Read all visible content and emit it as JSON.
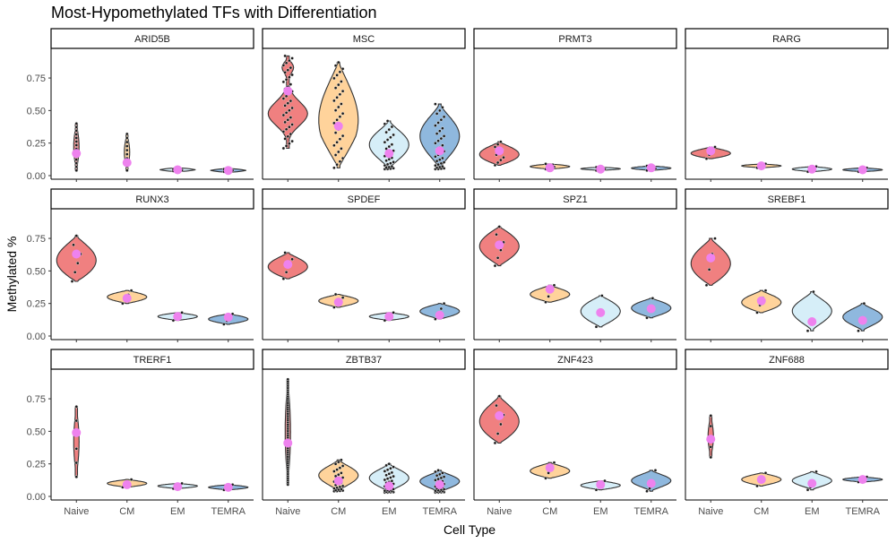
{
  "chart_data": {
    "type": "violin",
    "title": "Most-Hypomethylated TFs with Differentiation",
    "xlabel": "Cell Type",
    "ylabel": "Methylated %",
    "categories": [
      "Naive",
      "CM",
      "EM",
      "TEMRA"
    ],
    "ylim": [
      0,
      0.95
    ],
    "yticks": [
      0.0,
      0.25,
      0.5,
      0.75
    ],
    "ytick_labels": [
      "0.00",
      "0.25",
      "0.50",
      "0.75"
    ],
    "grid": false,
    "facet_layout": {
      "rows": 3,
      "cols": 4
    },
    "colors": {
      "Naive": "#f08080",
      "CM": "#ffd39b",
      "EM": "#d6eef8",
      "TEMRA": "#8fb8de",
      "mean_point": "#ee82ee",
      "outline": "#333333",
      "dot": "#1a1a1a"
    },
    "panels": [
      {
        "name": "ARID5B",
        "groups": [
          {
            "min": 0.04,
            "max": 0.4,
            "mean": 0.17,
            "n": 14,
            "shape": "line"
          },
          {
            "min": 0.04,
            "max": 0.32,
            "mean": 0.1,
            "n": 10,
            "shape": "line"
          },
          {
            "min": 0.035,
            "max": 0.055,
            "mean": 0.045,
            "n": 10,
            "shape": "flat"
          },
          {
            "min": 0.03,
            "max": 0.05,
            "mean": 0.04,
            "n": 8,
            "shape": "flat"
          }
        ]
      },
      {
        "name": "MSC",
        "groups": [
          {
            "min": 0.21,
            "max": 0.92,
            "mean": 0.65,
            "n": 40,
            "shape": "hourglass"
          },
          {
            "min": 0.06,
            "max": 0.87,
            "mean": 0.38,
            "n": 34,
            "shape": "tall"
          },
          {
            "min": 0.05,
            "max": 0.42,
            "mean": 0.17,
            "n": 30,
            "shape": "bottom"
          },
          {
            "min": 0.05,
            "max": 0.55,
            "mean": 0.19,
            "n": 36,
            "shape": "bottom"
          }
        ]
      },
      {
        "name": "PRMT3",
        "groups": [
          {
            "min": 0.08,
            "max": 0.26,
            "mean": 0.19,
            "n": 10,
            "shape": "top"
          },
          {
            "min": 0.05,
            "max": 0.09,
            "mean": 0.06,
            "n": 8,
            "shape": "flat"
          },
          {
            "min": 0.04,
            "max": 0.065,
            "mean": 0.05,
            "n": 8,
            "shape": "flat"
          },
          {
            "min": 0.04,
            "max": 0.075,
            "mean": 0.06,
            "n": 8,
            "shape": "flat"
          }
        ]
      },
      {
        "name": "RARG",
        "groups": [
          {
            "min": 0.13,
            "max": 0.22,
            "mean": 0.19,
            "n": 4,
            "shape": "top"
          },
          {
            "min": 0.06,
            "max": 0.09,
            "mean": 0.075,
            "n": 4,
            "shape": "flat"
          },
          {
            "min": 0.03,
            "max": 0.07,
            "mean": 0.05,
            "n": 4,
            "shape": "flat"
          },
          {
            "min": 0.03,
            "max": 0.06,
            "mean": 0.045,
            "n": 4,
            "shape": "flat"
          }
        ]
      },
      {
        "name": "RUNX3",
        "groups": [
          {
            "min": 0.42,
            "max": 0.77,
            "mean": 0.63,
            "n": 6,
            "shape": "top"
          },
          {
            "min": 0.25,
            "max": 0.35,
            "mean": 0.29,
            "n": 4,
            "shape": "mid"
          },
          {
            "min": 0.12,
            "max": 0.18,
            "mean": 0.15,
            "n": 4,
            "shape": "flat"
          },
          {
            "min": 0.09,
            "max": 0.17,
            "mean": 0.145,
            "n": 4,
            "shape": "flat"
          }
        ]
      },
      {
        "name": "SPDEF",
        "groups": [
          {
            "min": 0.44,
            "max": 0.64,
            "mean": 0.55,
            "n": 5,
            "shape": "top"
          },
          {
            "min": 0.22,
            "max": 0.32,
            "mean": 0.26,
            "n": 5,
            "shape": "mid"
          },
          {
            "min": 0.12,
            "max": 0.18,
            "mean": 0.15,
            "n": 4,
            "shape": "flat"
          },
          {
            "min": 0.13,
            "max": 0.25,
            "mean": 0.16,
            "n": 4,
            "shape": "flat"
          }
        ]
      },
      {
        "name": "SPZ1",
        "groups": [
          {
            "min": 0.54,
            "max": 0.84,
            "mean": 0.7,
            "n": 6,
            "shape": "mid"
          },
          {
            "min": 0.26,
            "max": 0.39,
            "mean": 0.36,
            "n": 4,
            "shape": "top"
          },
          {
            "min": 0.07,
            "max": 0.31,
            "mean": 0.18,
            "n": 3,
            "shape": "mid"
          },
          {
            "min": 0.14,
            "max": 0.29,
            "mean": 0.21,
            "n": 3,
            "shape": "mid"
          }
        ]
      },
      {
        "name": "SREBF1",
        "groups": [
          {
            "min": 0.39,
            "max": 0.75,
            "mean": 0.6,
            "n": 4,
            "shape": "top"
          },
          {
            "min": 0.18,
            "max": 0.35,
            "mean": 0.27,
            "n": 4,
            "shape": "top"
          },
          {
            "min": 0.04,
            "max": 0.34,
            "mean": 0.11,
            "n": 3,
            "shape": "bottom"
          },
          {
            "min": 0.04,
            "max": 0.25,
            "mean": 0.12,
            "n": 3,
            "shape": "bottom"
          }
        ]
      },
      {
        "name": "TRERF1",
        "groups": [
          {
            "min": 0.15,
            "max": 0.69,
            "mean": 0.49,
            "n": 6,
            "shape": "line"
          },
          {
            "min": 0.07,
            "max": 0.13,
            "mean": 0.09,
            "n": 4,
            "shape": "flat"
          },
          {
            "min": 0.06,
            "max": 0.1,
            "mean": 0.075,
            "n": 4,
            "shape": "flat"
          },
          {
            "min": 0.05,
            "max": 0.09,
            "mean": 0.07,
            "n": 4,
            "shape": "flat"
          }
        ]
      },
      {
        "name": "ZBTB37",
        "groups": [
          {
            "min": 0.09,
            "max": 0.9,
            "mean": 0.41,
            "n": 50,
            "shape": "line"
          },
          {
            "min": 0.04,
            "max": 0.28,
            "mean": 0.12,
            "n": 28,
            "shape": "bottom"
          },
          {
            "min": 0.03,
            "max": 0.25,
            "mean": 0.08,
            "n": 34,
            "shape": "bottom"
          },
          {
            "min": 0.03,
            "max": 0.2,
            "mean": 0.09,
            "n": 30,
            "shape": "bottom"
          }
        ]
      },
      {
        "name": "ZNF423",
        "groups": [
          {
            "min": 0.41,
            "max": 0.77,
            "mean": 0.62,
            "n": 6,
            "shape": "top"
          },
          {
            "min": 0.14,
            "max": 0.26,
            "mean": 0.22,
            "n": 4,
            "shape": "top"
          },
          {
            "min": 0.05,
            "max": 0.12,
            "mean": 0.09,
            "n": 4,
            "shape": "flat"
          },
          {
            "min": 0.04,
            "max": 0.2,
            "mean": 0.1,
            "n": 4,
            "shape": "bottom"
          }
        ]
      },
      {
        "name": "ZNF688",
        "groups": [
          {
            "min": 0.3,
            "max": 0.62,
            "mean": 0.44,
            "n": 5,
            "shape": "line"
          },
          {
            "min": 0.08,
            "max": 0.18,
            "mean": 0.13,
            "n": 4,
            "shape": "mid"
          },
          {
            "min": 0.05,
            "max": 0.19,
            "mean": 0.1,
            "n": 4,
            "shape": "bottom"
          },
          {
            "min": 0.11,
            "max": 0.15,
            "mean": 0.13,
            "n": 4,
            "shape": "flat"
          }
        ]
      }
    ]
  }
}
